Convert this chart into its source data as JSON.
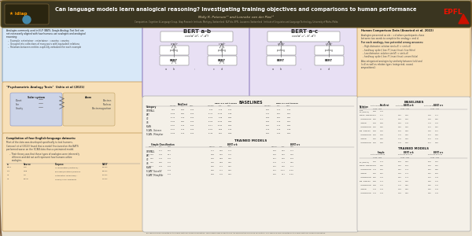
{
  "title": "Can language models learn analogical reasoning? Investigating training objectives and comparisons to human performance",
  "authors": "Molly R. Petersen¹² and Lonneke van der Plas¹³",
  "affiliation": "Computation, Cognition & Language Group, Idiap Research Institute, Martigny, Switzerland  NLP lab, EPFL, Lausanne, Switzerland  Institute of Linguistics and Language Technology, University of Malta, Malta",
  "bg_color": "#e8e0d0",
  "header_bg": "#3a3520",
  "panel_blue": "#d8e8f8",
  "panel_orange": "#f8e0b8",
  "panel_purple_light": "#e8e0f4",
  "panel_white": "#f8f8f8",
  "border_orange": "#c8a060",
  "border_blue": "#7090b0",
  "border_purple": "#9080c0",
  "text_dark": "#222222",
  "text_mid": "#444444",
  "text_light": "#666666"
}
